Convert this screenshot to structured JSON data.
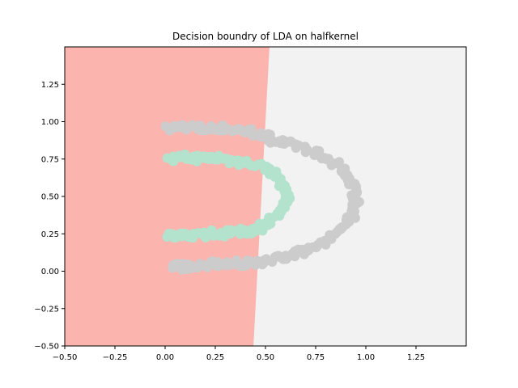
{
  "chart_data": {
    "type": "scatter",
    "title": "Decision boundry of LDA on halfkernel",
    "xlabel": "",
    "ylabel": "",
    "xlim": [
      -0.5,
      1.5
    ],
    "ylim": [
      -0.5,
      1.5
    ],
    "xticks": [
      -0.5,
      -0.25,
      0.0,
      0.25,
      0.5,
      0.75,
      1.0,
      1.25
    ],
    "yticks": [
      -0.5,
      -0.25,
      0.0,
      0.25,
      0.5,
      0.75,
      1.0,
      1.25
    ],
    "xtick_labels": [
      "−0.50",
      "−0.25",
      "0.00",
      "0.25",
      "0.50",
      "0.75",
      "1.00",
      "1.25"
    ],
    "ytick_labels": [
      "−0.50",
      "−0.25",
      "0.00",
      "0.25",
      "0.50",
      "0.75",
      "1.00",
      "1.25"
    ],
    "grid": false,
    "regions": [
      {
        "color": "#fbb4ae",
        "boundary": [
          [
            0.52,
            1.5
          ],
          [
            0.51,
            1.25
          ],
          [
            0.5,
            1.0
          ],
          [
            0.49,
            0.75
          ],
          [
            0.48,
            0.5
          ],
          [
            0.47,
            0.25
          ],
          [
            0.46,
            0.0
          ],
          [
            0.45,
            -0.25
          ],
          [
            0.44,
            -0.5
          ]
        ]
      },
      {
        "color": "#f2f2f2"
      }
    ],
    "series": [
      {
        "color": "#cccccc",
        "shape": "outer-arc",
        "points": [
          [
            0.02,
            0.95
          ],
          [
            0.08,
            0.97
          ],
          [
            0.14,
            0.96
          ],
          [
            0.2,
            0.95
          ],
          [
            0.26,
            0.96
          ],
          [
            0.32,
            0.95
          ],
          [
            0.38,
            0.94
          ],
          [
            0.44,
            0.93
          ],
          [
            0.5,
            0.9
          ],
          [
            0.56,
            0.87
          ],
          [
            0.62,
            0.85
          ],
          [
            0.68,
            0.83
          ],
          [
            0.74,
            0.79
          ],
          [
            0.8,
            0.75
          ],
          [
            0.86,
            0.7
          ],
          [
            0.9,
            0.65
          ],
          [
            0.92,
            0.6
          ],
          [
            0.94,
            0.55
          ],
          [
            0.95,
            0.5
          ],
          [
            0.95,
            0.45
          ],
          [
            0.94,
            0.4
          ],
          [
            0.92,
            0.35
          ],
          [
            0.89,
            0.3
          ],
          [
            0.85,
            0.25
          ],
          [
            0.8,
            0.2
          ],
          [
            0.74,
            0.17
          ],
          [
            0.68,
            0.13
          ],
          [
            0.62,
            0.11
          ],
          [
            0.56,
            0.09
          ],
          [
            0.5,
            0.07
          ],
          [
            0.44,
            0.06
          ],
          [
            0.38,
            0.05
          ],
          [
            0.32,
            0.06
          ],
          [
            0.26,
            0.05
          ],
          [
            0.2,
            0.04
          ],
          [
            0.14,
            0.04
          ],
          [
            0.08,
            0.03
          ],
          [
            0.04,
            0.04
          ]
        ]
      },
      {
        "color": "#b3e2cd",
        "shape": "inner-arc",
        "points": [
          [
            0.02,
            0.74
          ],
          [
            0.08,
            0.76
          ],
          [
            0.14,
            0.76
          ],
          [
            0.2,
            0.75
          ],
          [
            0.26,
            0.76
          ],
          [
            0.32,
            0.74
          ],
          [
            0.38,
            0.73
          ],
          [
            0.44,
            0.72
          ],
          [
            0.5,
            0.69
          ],
          [
            0.55,
            0.64
          ],
          [
            0.58,
            0.58
          ],
          [
            0.6,
            0.52
          ],
          [
            0.61,
            0.47
          ],
          [
            0.59,
            0.42
          ],
          [
            0.56,
            0.37
          ],
          [
            0.52,
            0.33
          ],
          [
            0.47,
            0.29
          ],
          [
            0.41,
            0.27
          ],
          [
            0.35,
            0.26
          ],
          [
            0.29,
            0.25
          ],
          [
            0.23,
            0.26
          ],
          [
            0.17,
            0.24
          ],
          [
            0.11,
            0.25
          ],
          [
            0.05,
            0.23
          ],
          [
            0.01,
            0.23
          ]
        ]
      }
    ]
  }
}
